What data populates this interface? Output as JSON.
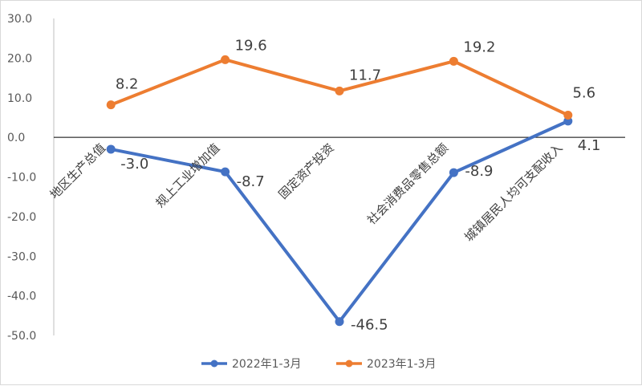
{
  "chart_data": {
    "type": "line",
    "title": "",
    "xlabel": "",
    "ylabel": "",
    "ylim": [
      -50,
      30
    ],
    "y_ticks": [
      "30.0",
      "20.0",
      "10.0",
      "0.0",
      "-10.0",
      "-20.0",
      "-30.0",
      "-40.0",
      "-50.0"
    ],
    "categories": [
      "地区生产总值",
      "规上工业增加值",
      "固定资产投资",
      "社会消费品零售总额",
      "城镇居民人均可支配收入"
    ],
    "series": [
      {
        "name": "2022年1-3月",
        "color": "#4472C4",
        "values": [
          -3.0,
          -8.7,
          -46.5,
          -8.9,
          4.1
        ],
        "labels": [
          "-3.0",
          "-8.7",
          "-46.5",
          "-8.9",
          "4.1"
        ]
      },
      {
        "name": "2023年1-3月",
        "color": "#ED7D31",
        "values": [
          8.2,
          19.6,
          11.7,
          19.2,
          5.6
        ],
        "labels": [
          "8.2",
          "19.6",
          "11.7",
          "19.2",
          "5.6"
        ]
      }
    ],
    "legend_position": "bottom",
    "grid": false
  }
}
